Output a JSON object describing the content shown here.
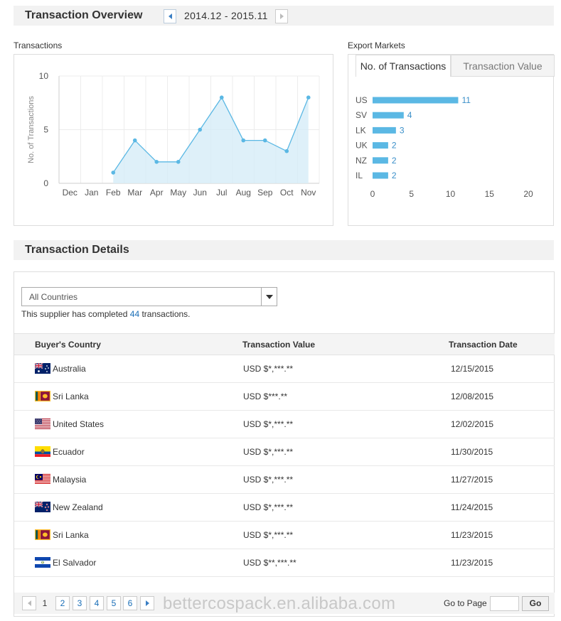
{
  "overview": {
    "title": "Transaction Overview",
    "date_range": "2014.12 - 2015.11",
    "prev_icon": "triangle-left-icon",
    "next_icon": "triangle-right-icon"
  },
  "transactions_panel": {
    "label": "Transactions"
  },
  "export_panel": {
    "label": "Export Markets",
    "tabs": [
      {
        "label": "No. of Transactions",
        "active": true
      },
      {
        "label": "Transaction Value",
        "active": false
      }
    ]
  },
  "chart_data": [
    {
      "type": "area",
      "ylabel": "No. of Transactions",
      "categories": [
        "Dec",
        "Jan",
        "Feb",
        "Mar",
        "Apr",
        "May",
        "Jun",
        "Jul",
        "Aug",
        "Sep",
        "Oct",
        "Nov"
      ],
      "values": [
        null,
        null,
        1,
        4,
        2,
        2,
        5,
        8,
        4,
        4,
        3,
        8
      ],
      "ylim": [
        0,
        10
      ],
      "yticks": [
        0,
        5,
        10
      ],
      "grid": true,
      "color": "#5bb8e4",
      "fill": "#d6ecf8"
    },
    {
      "type": "bar",
      "orientation": "horizontal",
      "categories": [
        "US",
        "SV",
        "LK",
        "UK",
        "NZ",
        "IL"
      ],
      "values": [
        11,
        4,
        3,
        2,
        2,
        2
      ],
      "xlim": [
        0,
        20
      ],
      "xticks": [
        0,
        5,
        10,
        15,
        20
      ],
      "color": "#5bb8e4",
      "label_color": "#3a8fc9"
    }
  ],
  "details": {
    "title": "Transaction Details",
    "country_filter": "All Countries",
    "summary_prefix": "This supplier has completed",
    "summary_count": "44",
    "summary_suffix": "transactions.",
    "columns": [
      "Buyer's Country",
      "Transaction Value",
      "Transaction Date"
    ],
    "rows": [
      {
        "flag": "australia-flag-icon",
        "country": "Australia",
        "value": "USD $*,***.**",
        "date": "12/15/2015"
      },
      {
        "flag": "sri-lanka-flag-icon",
        "country": "Sri Lanka",
        "value": "USD $***.**",
        "date": "12/08/2015"
      },
      {
        "flag": "united-states-flag-icon",
        "country": "United States",
        "value": "USD $*,***.**",
        "date": "12/02/2015"
      },
      {
        "flag": "ecuador-flag-icon",
        "country": "Ecuador",
        "value": "USD $*,***.**",
        "date": "11/30/2015"
      },
      {
        "flag": "malaysia-flag-icon",
        "country": "Malaysia",
        "value": "USD $*,***.**",
        "date": "11/27/2015"
      },
      {
        "flag": "new-zealand-flag-icon",
        "country": "New Zealand",
        "value": "USD $*,***.**",
        "date": "11/24/2015"
      },
      {
        "flag": "sri-lanka-flag-icon",
        "country": "Sri Lanka",
        "value": "USD $*,***.**",
        "date": "11/23/2015"
      },
      {
        "flag": "el-salvador-flag-icon",
        "country": "El Salvador",
        "value": "USD $**,***.**",
        "date": "11/23/2015"
      }
    ]
  },
  "pagination": {
    "pages": [
      "1",
      "2",
      "3",
      "4",
      "5",
      "6"
    ],
    "current": "1",
    "goto_label": "Go to Page",
    "go_button": "Go"
  },
  "watermark": "bettercospack.en.alibaba.com"
}
